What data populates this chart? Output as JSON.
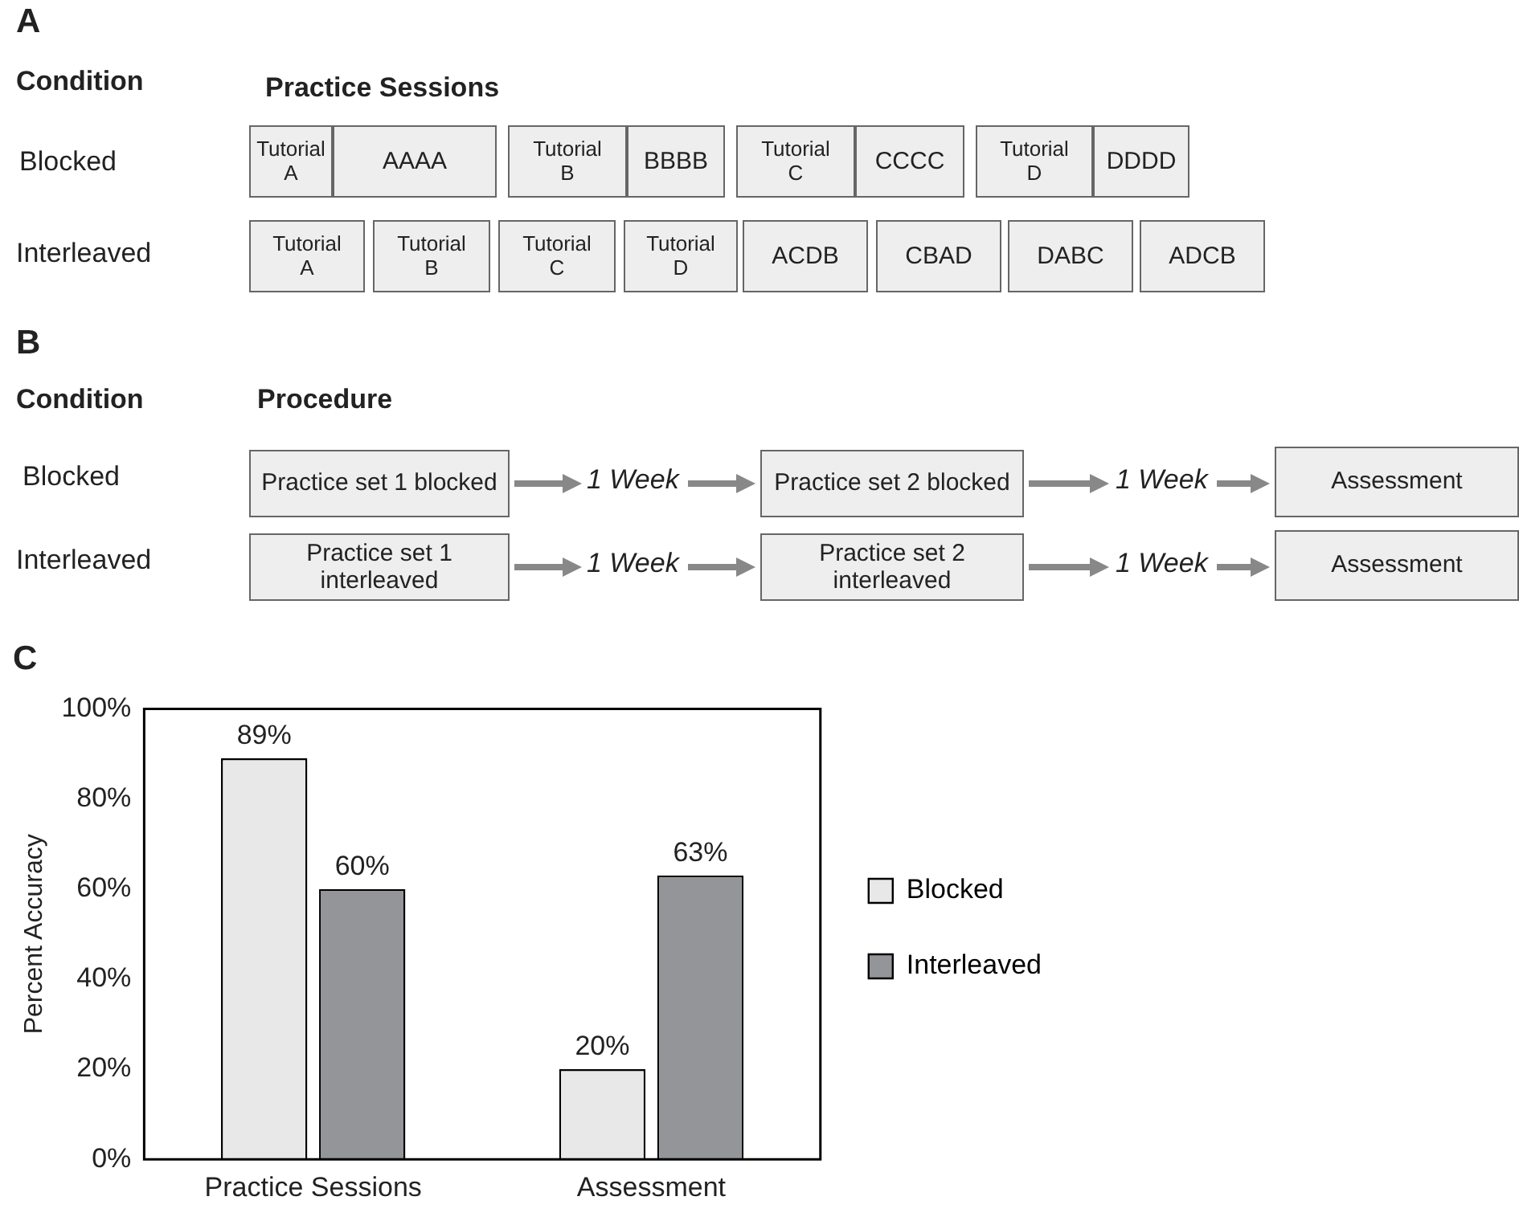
{
  "chart_data": [
    {
      "type": "other",
      "title": "A",
      "annotations": [
        "Condition",
        "Practice Sessions",
        "Blocked",
        "Interleaved",
        "Tutorial A",
        "AAAA",
        "Tutorial B",
        "BBBB",
        "Tutorial C",
        "CCCC",
        "Tutorial D",
        "DDDD",
        "Tutorial A",
        "Tutorial B",
        "Tutorial C",
        "Tutorial D",
        "ACDB",
        "CBAD",
        "DABC",
        "ADCB"
      ]
    },
    {
      "type": "other",
      "title": "B",
      "annotations": [
        "Condition",
        "Procedure",
        "Blocked",
        "Interleaved",
        "Practice set 1 blocked",
        "1 Week",
        "Practice set 2 blocked",
        "1 Week",
        "Assessment",
        "Practice set 1 interleaved",
        "1 Week",
        "Practice set 2 interleaved",
        "1 Week",
        "Assessment"
      ]
    },
    {
      "type": "bar",
      "title": "C",
      "ylabel": "Percent Accuracy",
      "categories": [
        "Practice Sessions",
        "Assessment"
      ],
      "series": [
        {
          "name": "Blocked",
          "color": "#e8e8e8",
          "values": [
            89,
            20
          ],
          "value_labels": [
            "89%",
            "20%"
          ]
        },
        {
          "name": "Interleaved",
          "color": "#939598",
          "values": [
            60,
            63
          ],
          "value_labels": [
            "60%",
            "63%"
          ]
        }
      ],
      "ylim": [
        0,
        100
      ],
      "yticks": [
        {
          "value": 0,
          "label": "0%"
        },
        {
          "value": 20,
          "label": "20%"
        },
        {
          "value": 40,
          "label": "40%"
        },
        {
          "value": 60,
          "label": "60%"
        },
        {
          "value": 80,
          "label": "80%"
        },
        {
          "value": 100,
          "label": "100%"
        }
      ],
      "grid": false,
      "legend": "right"
    }
  ]
}
